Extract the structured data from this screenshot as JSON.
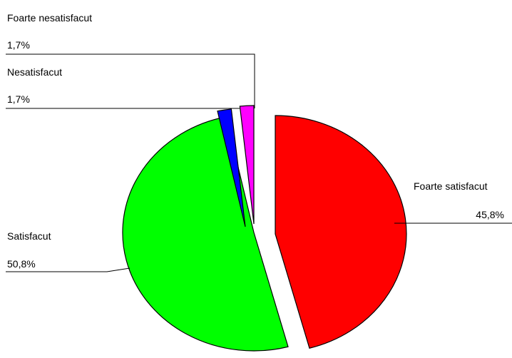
{
  "chart_data": {
    "type": "pie",
    "title": "",
    "slices": [
      {
        "name": "Foarte satisfacut",
        "value": 45.8,
        "label": "45,8%",
        "color": "#ff0000"
      },
      {
        "name": "Satisfacut",
        "value": 50.8,
        "label": "50,8%",
        "color": "#00ff00"
      },
      {
        "name": "Nesatisfacut",
        "value": 1.7,
        "label": "1,7%",
        "color": "#0000ff"
      },
      {
        "name": "Foarte nesatisfacut",
        "value": 1.7,
        "label": "1,7%",
        "color": "#ff00ff"
      }
    ],
    "exploded": true,
    "legend": "none"
  }
}
